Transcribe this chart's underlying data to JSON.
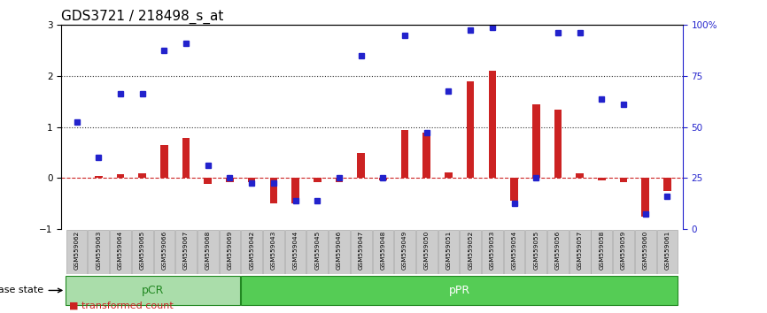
{
  "title": "GDS3721 / 218498_s_at",
  "samples": [
    "GSM559062",
    "GSM559063",
    "GSM559064",
    "GSM559065",
    "GSM559066",
    "GSM559067",
    "GSM559068",
    "GSM559069",
    "GSM559042",
    "GSM559043",
    "GSM559044",
    "GSM559045",
    "GSM559046",
    "GSM559047",
    "GSM559048",
    "GSM559049",
    "GSM559050",
    "GSM559051",
    "GSM559052",
    "GSM559053",
    "GSM559054",
    "GSM559055",
    "GSM559056",
    "GSM559057",
    "GSM559058",
    "GSM559059",
    "GSM559060",
    "GSM559061"
  ],
  "red_bars": [
    0.0,
    0.05,
    0.08,
    0.1,
    0.65,
    0.78,
    -0.12,
    -0.08,
    -0.07,
    -0.5,
    -0.5,
    -0.08,
    -0.08,
    0.5,
    -0.05,
    0.95,
    0.9,
    0.12,
    1.9,
    2.1,
    -0.45,
    1.45,
    1.35,
    0.1,
    -0.05,
    -0.08,
    -0.75,
    -0.25
  ],
  "blue_dots": [
    1.1,
    0.4,
    1.65,
    1.65,
    2.5,
    2.65,
    0.25,
    0.0,
    -0.1,
    -0.1,
    -0.45,
    -0.45,
    0.0,
    2.4,
    0.0,
    2.8,
    0.9,
    1.7,
    2.9,
    2.95,
    -0.5,
    0.0,
    2.85,
    2.85,
    1.55,
    1.45,
    -0.7,
    -0.35
  ],
  "pCR_count": 8,
  "pPR_count": 20,
  "ylim_left": [
    -1,
    3
  ],
  "ylim_right": [
    0,
    100
  ],
  "yticks_left": [
    -1,
    0,
    1,
    2,
    3
  ],
  "yticks_right": [
    0,
    25,
    50,
    75,
    100
  ],
  "ytick_right_labels": [
    "0",
    "25",
    "50",
    "75",
    "100%"
  ],
  "hline_values": [
    0,
    1,
    2
  ],
  "hline_styles": [
    "--",
    ":",
    ":"
  ],
  "hline_colors": [
    "#cc2222",
    "#333333",
    "#333333"
  ],
  "bar_color": "#cc2222",
  "dot_color": "#2222cc",
  "pCR_color": "#aaddaa",
  "pPR_color": "#55cc55",
  "group_label_color": "#228822",
  "title_fontsize": 11,
  "tick_fontsize": 7.5,
  "label_fontsize": 9
}
